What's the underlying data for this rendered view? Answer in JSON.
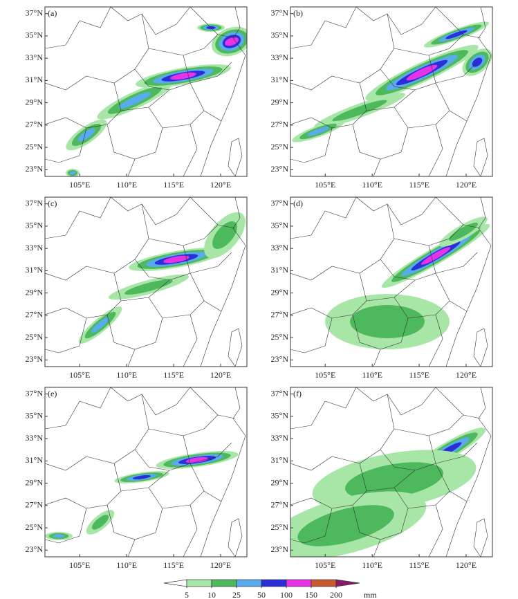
{
  "panels": [
    {
      "label": "(a)"
    },
    {
      "label": "(b)"
    },
    {
      "label": "(c)"
    },
    {
      "label": "(d)"
    },
    {
      "label": "(e)"
    },
    {
      "label": "(f)"
    }
  ],
  "latlim": [
    22.4,
    37.6
  ],
  "lonlim": [
    101.3,
    122.8
  ],
  "lat_ticks": [
    {
      "value": 37,
      "label": "37°N"
    },
    {
      "value": 35,
      "label": "35°N"
    },
    {
      "value": 33,
      "label": "33°N"
    },
    {
      "value": 31,
      "label": "31°N"
    },
    {
      "value": 29,
      "label": "29°N"
    },
    {
      "value": 27,
      "label": "27°N"
    },
    {
      "value": 25,
      "label": "25°N"
    },
    {
      "value": 23,
      "label": "23°N"
    }
  ],
  "lon_ticks": [
    {
      "value": 105,
      "label": "105°E"
    },
    {
      "value": 110,
      "label": "110°E"
    },
    {
      "value": 115,
      "label": "115°E"
    },
    {
      "value": 120,
      "label": "120°E"
    }
  ],
  "colorbar": {
    "levels": [
      5,
      10,
      25,
      50,
      100,
      150,
      200
    ],
    "unit": "mm",
    "colors": [
      "#ffffff",
      "#a8e6a8",
      "#4db85c",
      "#5aabec",
      "#2a2fd6",
      "#e633e6",
      "#c85a32",
      "#8b1a6b"
    ]
  }
}
